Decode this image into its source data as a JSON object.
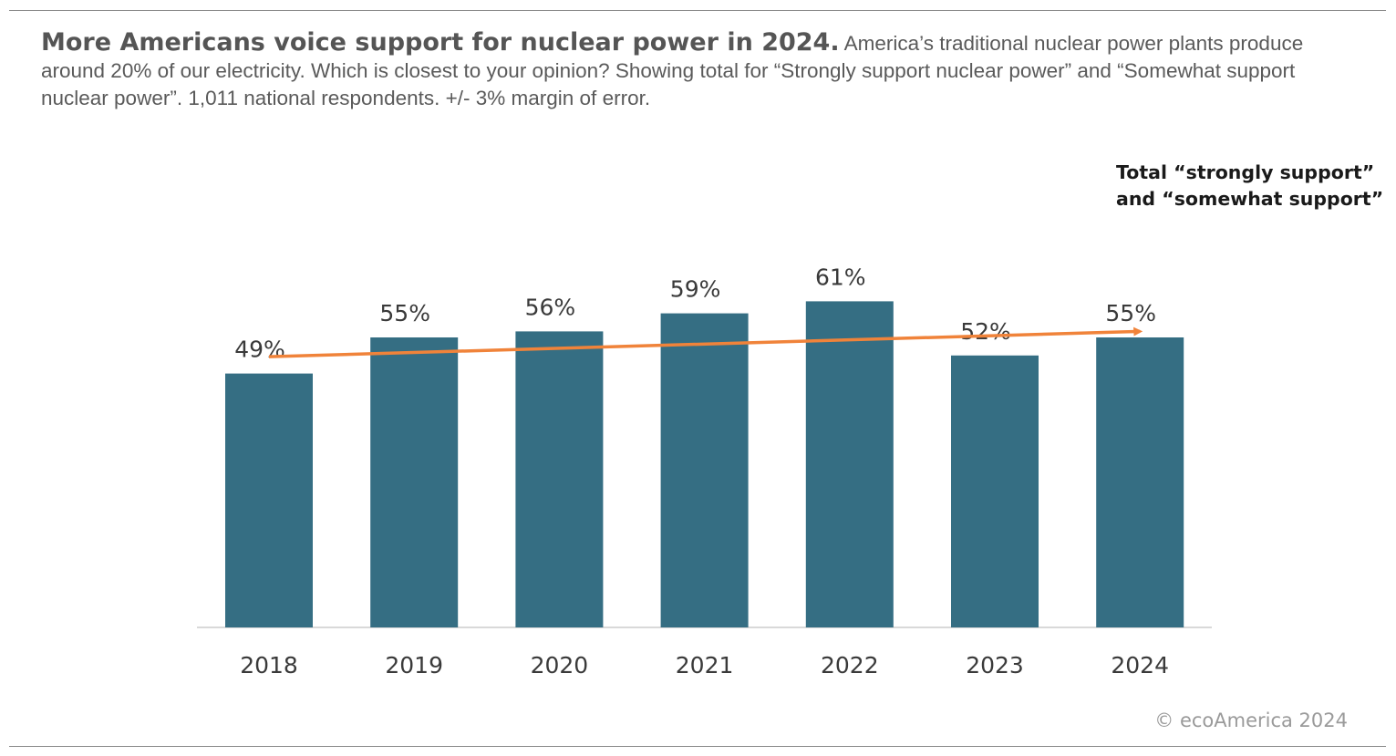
{
  "header": {
    "title": "More Americans voice support for nuclear power in 2024.",
    "subtitle": "America’s traditional nuclear power plants produce around 20% of our electricity. Which is closest to your opinion? Showing total for “Strongly support nuclear power” and “Somewhat support nuclear power”. 1,011 national respondents. +/- 3% margin of error."
  },
  "chart_data": {
    "type": "bar",
    "title": "More Americans voice support for nuclear power in 2024.",
    "categories": [
      "2018",
      "2019",
      "2020",
      "2021",
      "2022",
      "2023",
      "2024"
    ],
    "values": [
      49,
      55,
      56,
      59,
      61,
      52,
      55
    ],
    "value_labels": [
      "49%",
      "55%",
      "56%",
      "59%",
      "61%",
      "52%",
      "55%"
    ],
    "xlabel": "",
    "ylabel": "",
    "ylim": [
      0,
      100
    ],
    "grid": false,
    "trendline": {
      "type": "linear",
      "start_value": 51.8,
      "end_value": 56.0,
      "annotation_line1": "Total “strongly support”",
      "annotation_line2": "and “somewhat support”"
    }
  },
  "colors": {
    "bar": "#356e83",
    "trend": "#f0833a",
    "axis": "#d9d9d9"
  },
  "footer": {
    "copyright": "© ecoAmerica 2024"
  }
}
